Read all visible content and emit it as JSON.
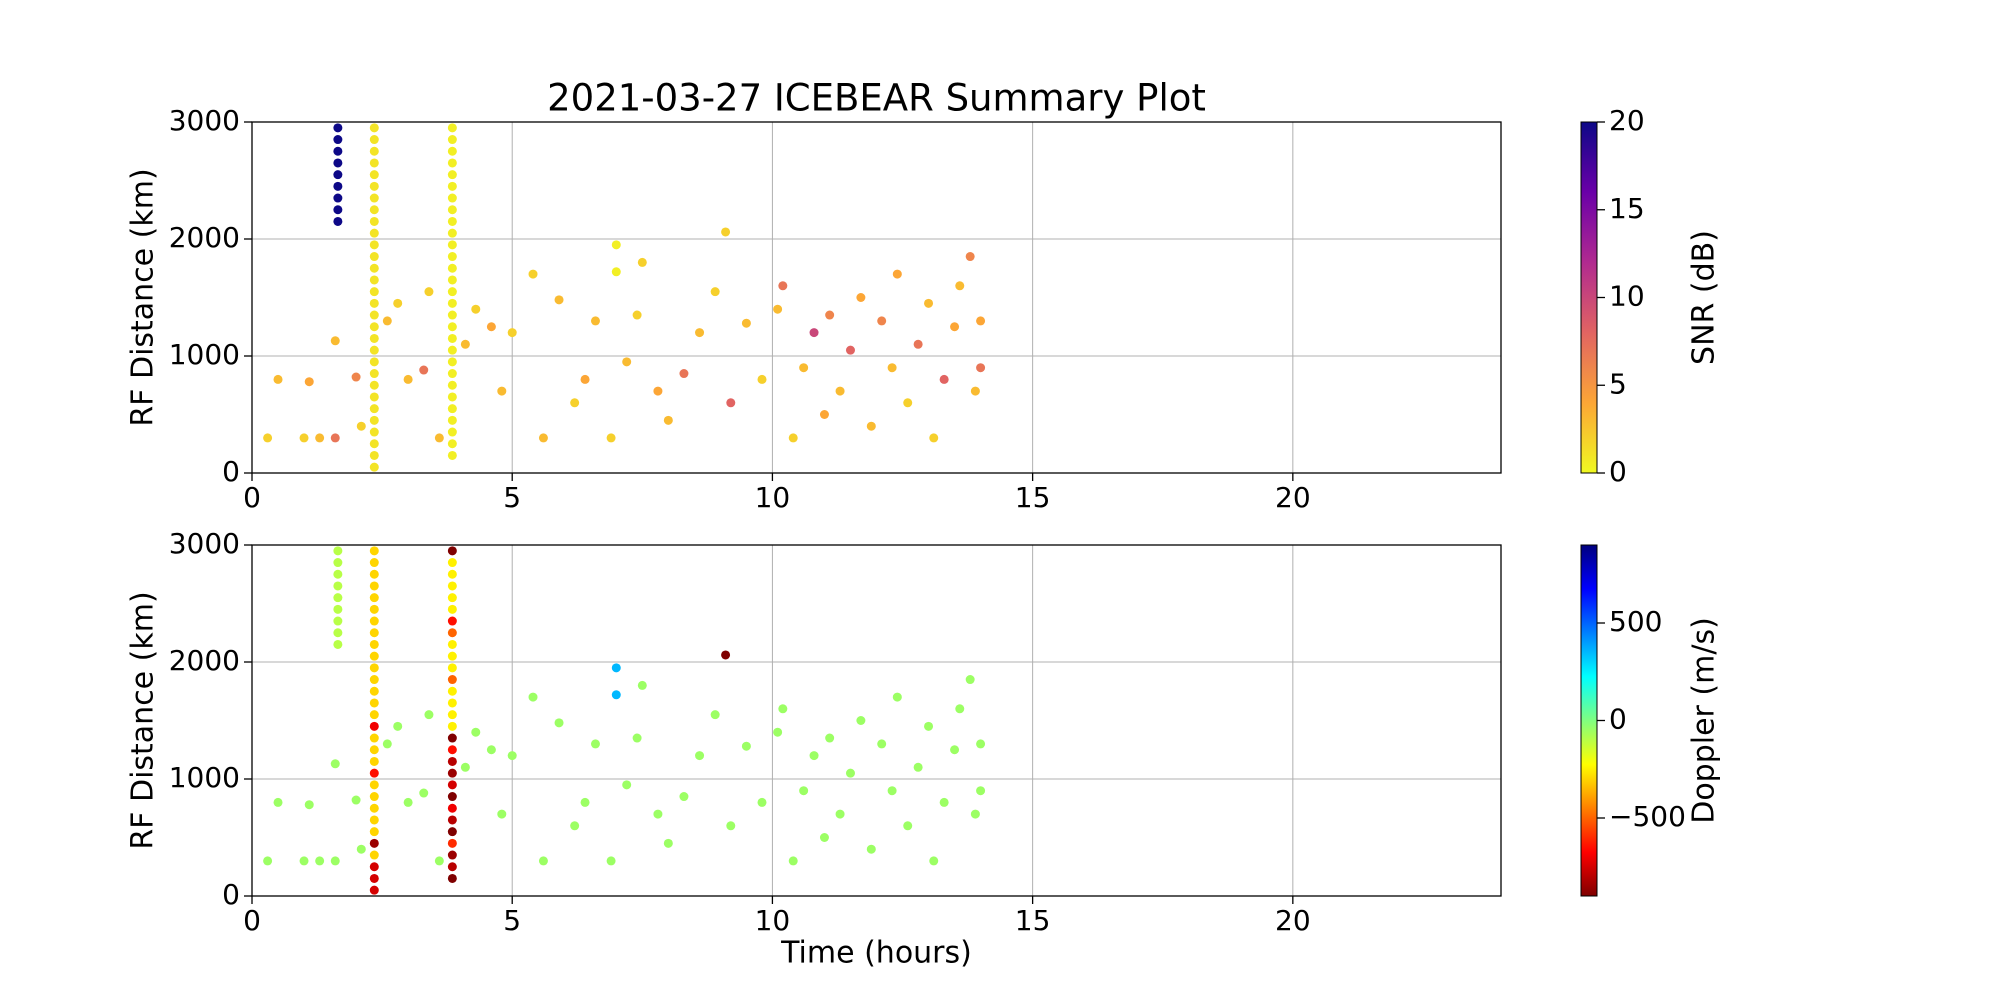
{
  "chart_data": [
    {
      "type": "scatter",
      "title": "2021-03-27 ICEBEAR Summary Plot",
      "ylabel": "RF Distance (km)",
      "xlim": [
        0,
        24
      ],
      "ylim": [
        0,
        3000
      ],
      "xticks": [
        0,
        5,
        10,
        15,
        20
      ],
      "yticks": [
        0,
        1000,
        2000,
        3000
      ],
      "grid": true,
      "colorbar": {
        "label": "SNR (dB)",
        "lim": [
          0,
          20
        ],
        "ticks": [
          0,
          5,
          10,
          15,
          20
        ],
        "colormap": [
          "#f0f921",
          "#fca636",
          "#e16462",
          "#b12a90",
          "#6a00a8",
          "#0d0887"
        ]
      },
      "x": [
        1.65,
        1.65,
        1.65,
        1.65,
        1.65,
        1.65,
        1.65,
        1.65,
        1.65,
        2.35,
        2.35,
        2.35,
        2.35,
        2.35,
        2.35,
        2.35,
        2.35,
        2.35,
        2.35,
        2.35,
        2.35,
        2.35,
        2.35,
        2.35,
        2.35,
        2.35,
        2.35,
        2.35,
        2.35,
        2.35,
        2.35,
        2.35,
        2.35,
        2.35,
        2.35,
        2.35,
        2.35,
        2.35,
        2.35,
        3.85,
        3.85,
        3.85,
        3.85,
        3.85,
        3.85,
        3.85,
        3.85,
        3.85,
        3.85,
        3.85,
        3.85,
        3.85,
        3.85,
        3.85,
        3.85,
        3.85,
        3.85,
        3.85,
        3.85,
        3.85,
        3.85,
        3.85,
        3.85,
        3.85,
        3.85,
        3.85,
        3.85,
        3.85,
        0.3,
        0.5,
        1.0,
        1.3,
        1.1,
        1.6,
        1.6,
        2.0,
        2.1,
        2.6,
        2.8,
        3.0,
        3.3,
        3.4,
        3.6,
        4.1,
        4.3,
        4.6,
        4.8,
        5.0,
        5.4,
        5.6,
        5.9,
        6.2,
        6.4,
        6.6,
        6.9,
        7.2,
        7.4,
        7.5,
        7.8,
        8.0,
        8.3,
        8.6,
        8.9,
        9.1,
        9.2,
        9.5,
        9.8,
        10.1,
        10.2,
        10.4,
        10.6,
        10.8,
        11.0,
        11.1,
        11.3,
        11.5,
        11.7,
        11.9,
        12.1,
        12.3,
        12.4,
        12.6,
        12.8,
        13.0,
        13.1,
        13.3,
        13.5,
        13.6,
        13.8,
        13.9,
        14.0,
        14.0,
        7.0,
        7.0
      ],
      "y": [
        2150,
        2250,
        2350,
        2450,
        2550,
        2650,
        2750,
        2850,
        2950,
        50,
        150,
        250,
        350,
        450,
        550,
        650,
        750,
        850,
        950,
        1050,
        1150,
        1250,
        1350,
        1450,
        1550,
        1650,
        1750,
        1850,
        1950,
        2050,
        2150,
        2250,
        2350,
        2450,
        2550,
        2650,
        2750,
        2850,
        2950,
        150,
        250,
        350,
        450,
        550,
        650,
        750,
        850,
        950,
        1050,
        1150,
        1250,
        1350,
        1450,
        1550,
        1650,
        1750,
        1850,
        1950,
        2050,
        2150,
        2250,
        2350,
        2450,
        2550,
        2650,
        2750,
        2850,
        2950,
        300,
        800,
        300,
        300,
        780,
        300,
        1130,
        820,
        400,
        1300,
        1450,
        800,
        880,
        1550,
        300,
        1100,
        1400,
        1250,
        700,
        1200,
        1700,
        300,
        1480,
        600,
        800,
        1300,
        300,
        950,
        1350,
        1800,
        700,
        450,
        850,
        1200,
        1550,
        2060,
        600,
        1280,
        800,
        1400,
        1600,
        300,
        900,
        1200,
        500,
        1350,
        700,
        1050,
        1500,
        400,
        1300,
        900,
        1700,
        600,
        1100,
        1450,
        300,
        800,
        1250,
        1600,
        1850,
        700,
        1300,
        900,
        1950,
        1720
      ],
      "c": [
        20,
        20,
        20,
        20,
        20,
        20,
        20,
        20,
        20,
        1,
        1,
        1,
        1,
        1,
        1,
        1,
        1,
        1,
        1,
        1,
        1,
        1,
        1,
        1,
        1,
        1,
        1,
        1,
        1,
        1,
        1,
        1,
        1,
        1,
        1,
        1,
        1,
        1,
        1,
        0.5,
        0.5,
        0.5,
        0.5,
        0.5,
        0.5,
        0.5,
        0.5,
        0.5,
        0.5,
        0.5,
        0.5,
        0.5,
        0.5,
        0.5,
        0.5,
        0.5,
        0.5,
        0.5,
        0.5,
        0.5,
        0.5,
        0.5,
        0.5,
        0.5,
        0.5,
        0.5,
        0.5,
        0.5,
        2,
        3,
        2,
        3,
        4,
        7,
        3,
        6,
        2,
        3,
        2,
        3,
        7,
        2,
        3,
        3,
        2,
        4,
        3,
        2,
        2,
        3,
        3,
        2,
        4,
        3,
        2,
        3,
        2,
        2,
        4,
        3,
        7,
        3,
        2,
        2,
        8,
        3,
        2,
        3,
        7,
        2,
        3,
        10,
        4,
        6,
        3,
        8,
        4,
        3,
        6,
        3,
        4,
        2,
        7,
        3,
        2,
        8,
        4,
        3,
        6,
        3,
        4,
        7,
        0.5,
        0.5
      ]
    },
    {
      "type": "scatter",
      "ylabel": "RF Distance (km)",
      "xlabel": "Time (hours)",
      "xlim": [
        0,
        24
      ],
      "ylim": [
        0,
        3000
      ],
      "xticks": [
        0,
        5,
        10,
        15,
        20
      ],
      "yticks": [
        0,
        1000,
        2000,
        3000
      ],
      "grid": true,
      "colorbar": {
        "label": "Doppler (m/s)",
        "lim": [
          -900,
          900
        ],
        "ticks": [
          {
            "value": -500,
            "label": "−500"
          },
          0,
          500
        ],
        "colormap": [
          "#7f0000",
          "#ff0000",
          "#ff8000",
          "#ffff00",
          "#80ff80",
          "#00ffff",
          "#0080ff",
          "#0000ff",
          "#00007f"
        ]
      },
      "x": [
        1.65,
        1.65,
        1.65,
        1.65,
        1.65,
        1.65,
        1.65,
        1.65,
        1.65,
        2.35,
        2.35,
        2.35,
        2.35,
        2.35,
        2.35,
        2.35,
        2.35,
        2.35,
        2.35,
        2.35,
        2.35,
        2.35,
        2.35,
        2.35,
        2.35,
        2.35,
        2.35,
        2.35,
        2.35,
        2.35,
        2.35,
        2.35,
        2.35,
        2.35,
        2.35,
        2.35,
        2.35,
        2.35,
        2.35,
        3.85,
        3.85,
        3.85,
        3.85,
        3.85,
        3.85,
        3.85,
        3.85,
        3.85,
        3.85,
        3.85,
        3.85,
        3.85,
        3.85,
        3.85,
        3.85,
        3.85,
        3.85,
        3.85,
        3.85,
        3.85,
        3.85,
        3.85,
        3.85,
        3.85,
        3.85,
        3.85,
        3.85,
        3.85,
        0.3,
        0.5,
        1.0,
        1.3,
        1.1,
        1.6,
        1.6,
        2.0,
        2.1,
        2.6,
        2.8,
        3.0,
        3.3,
        3.4,
        3.6,
        4.1,
        4.3,
        4.6,
        4.8,
        5.0,
        5.4,
        5.6,
        5.9,
        6.2,
        6.4,
        6.6,
        6.9,
        7.2,
        7.4,
        7.5,
        7.8,
        8.0,
        8.3,
        8.6,
        8.9,
        9.1,
        9.2,
        9.5,
        9.8,
        10.1,
        10.2,
        10.4,
        10.6,
        10.8,
        11.0,
        11.1,
        11.3,
        11.5,
        11.7,
        11.9,
        12.1,
        12.3,
        12.4,
        12.6,
        12.8,
        13.0,
        13.1,
        13.3,
        13.5,
        13.6,
        13.8,
        13.9,
        14.0,
        14.0,
        7.0,
        7.0
      ],
      "y": [
        2150,
        2250,
        2350,
        2450,
        2550,
        2650,
        2750,
        2850,
        2950,
        50,
        150,
        250,
        350,
        450,
        550,
        650,
        750,
        850,
        950,
        1050,
        1150,
        1250,
        1350,
        1450,
        1550,
        1650,
        1750,
        1850,
        1950,
        2050,
        2150,
        2250,
        2350,
        2450,
        2550,
        2650,
        2750,
        2850,
        2950,
        150,
        250,
        350,
        450,
        550,
        650,
        750,
        850,
        950,
        1050,
        1150,
        1250,
        1350,
        1450,
        1550,
        1650,
        1750,
        1850,
        1950,
        2050,
        2150,
        2250,
        2350,
        2450,
        2550,
        2650,
        2750,
        2850,
        2950,
        300,
        800,
        300,
        300,
        780,
        300,
        1130,
        820,
        400,
        1300,
        1450,
        800,
        880,
        1550,
        300,
        1100,
        1400,
        1250,
        700,
        1200,
        1700,
        300,
        1480,
        600,
        800,
        1300,
        300,
        950,
        1350,
        1800,
        700,
        450,
        850,
        1200,
        1550,
        2060,
        600,
        1280,
        800,
        1400,
        1600,
        300,
        900,
        1200,
        500,
        1350,
        700,
        1050,
        1500,
        400,
        1300,
        900,
        1700,
        600,
        1100,
        1450,
        300,
        800,
        1250,
        1600,
        1850,
        700,
        1300,
        900,
        1950,
        1720
      ],
      "c": [
        -100,
        -100,
        -100,
        -100,
        -100,
        -100,
        -100,
        -100,
        -100,
        -750,
        -750,
        -750,
        -300,
        -850,
        -300,
        -300,
        -300,
        -300,
        -300,
        -650,
        -300,
        -300,
        -300,
        -700,
        -300,
        -300,
        -300,
        -300,
        -300,
        -300,
        -300,
        -300,
        -300,
        -300,
        -300,
        -300,
        -300,
        -300,
        -300,
        -900,
        -800,
        -850,
        -600,
        -900,
        -800,
        -700,
        -900,
        -750,
        -850,
        -800,
        -650,
        -900,
        -250,
        -250,
        -250,
        -250,
        -500,
        -250,
        -250,
        -250,
        -500,
        -650,
        -250,
        -250,
        -250,
        -250,
        -250,
        -900,
        -50,
        -50,
        -50,
        -50,
        -50,
        -50,
        -50,
        -50,
        -50,
        -50,
        -50,
        -50,
        -50,
        -50,
        -50,
        -50,
        -50,
        -50,
        -50,
        -50,
        -50,
        -50,
        -50,
        -50,
        -50,
        -50,
        -50,
        -50,
        -50,
        -50,
        -50,
        -50,
        -50,
        -50,
        -50,
        -900,
        -50,
        -50,
        -50,
        -50,
        -50,
        -50,
        -50,
        -50,
        -50,
        -50,
        -50,
        -50,
        -50,
        -50,
        -50,
        -50,
        -50,
        -50,
        -50,
        -50,
        -50,
        -50,
        -50,
        -50,
        -50,
        -50,
        -50,
        -50,
        350,
        350
      ]
    }
  ]
}
